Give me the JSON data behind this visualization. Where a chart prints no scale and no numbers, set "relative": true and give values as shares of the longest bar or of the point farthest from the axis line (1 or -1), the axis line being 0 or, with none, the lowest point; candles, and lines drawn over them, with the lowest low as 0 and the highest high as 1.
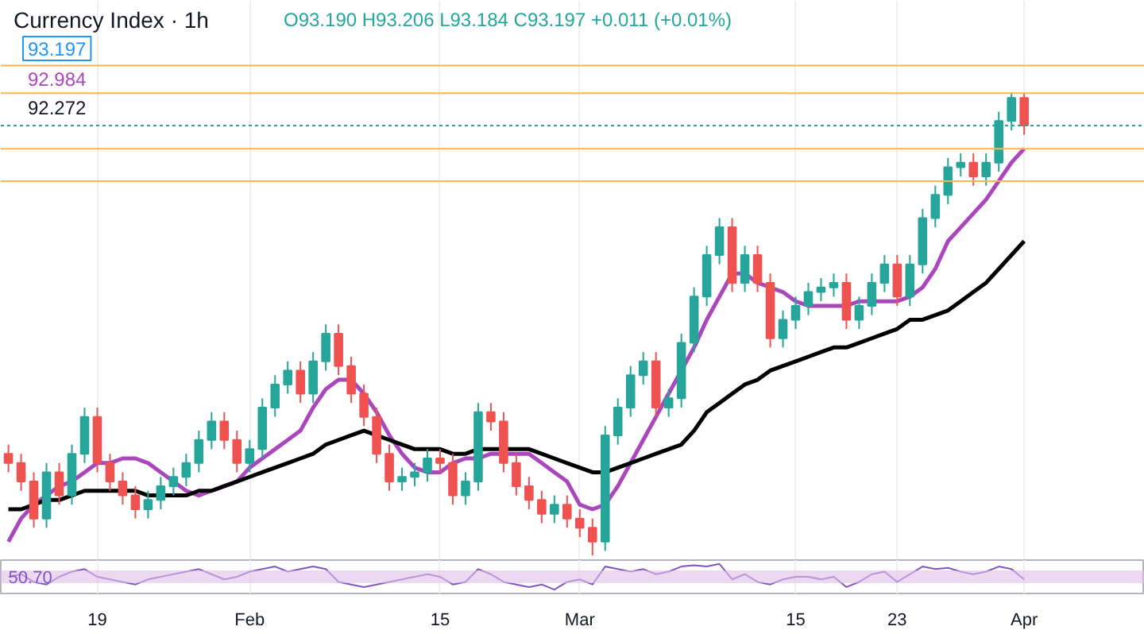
{
  "chart_data": [
    {
      "type": "candlestick",
      "title": "Currency Index · 1h",
      "relative": true,
      "tick_labels": false,
      "grid": "x",
      "annotations": [
        "O93.190 H93.206 L93.184 C93.197 +0.011 (+0.01%)",
        "93.197",
        "92.984",
        "92.272"
      ],
      "categories": [
        null,
        null,
        null,
        null,
        null,
        null,
        null,
        "19",
        null,
        null,
        null,
        null,
        null,
        null,
        null,
        null,
        null,
        null,
        null,
        "Feb",
        null,
        null,
        null,
        null,
        null,
        null,
        null,
        null,
        null,
        null,
        null,
        null,
        null,
        null,
        "15",
        null,
        null,
        null,
        null,
        null,
        null,
        null,
        null,
        null,
        null,
        "Mar",
        null,
        null,
        null,
        null,
        null,
        null,
        null,
        null,
        null,
        null,
        null,
        null,
        null,
        null,
        null,
        null,
        "15",
        null,
        null,
        null,
        null,
        null,
        null,
        null,
        "23",
        null,
        null,
        null,
        null,
        null,
        null,
        null,
        null,
        null,
        "Apr"
      ],
      "ohlc": [
        [
          0.22,
          0.24,
          0.18,
          0.2
        ],
        [
          0.2,
          0.22,
          0.14,
          0.16
        ],
        [
          0.16,
          0.18,
          0.06,
          0.08
        ],
        [
          0.08,
          0.2,
          0.06,
          0.18
        ],
        [
          0.18,
          0.2,
          0.11,
          0.13
        ],
        [
          0.13,
          0.24,
          0.11,
          0.22
        ],
        [
          0.22,
          0.32,
          0.2,
          0.3
        ],
        [
          0.3,
          0.32,
          0.18,
          0.2
        ],
        [
          0.2,
          0.22,
          0.14,
          0.16
        ],
        [
          0.16,
          0.18,
          0.11,
          0.13
        ],
        [
          0.13,
          0.15,
          0.08,
          0.1
        ],
        [
          0.1,
          0.14,
          0.08,
          0.12
        ],
        [
          0.12,
          0.17,
          0.1,
          0.15
        ],
        [
          0.15,
          0.19,
          0.13,
          0.17
        ],
        [
          0.17,
          0.22,
          0.15,
          0.2
        ],
        [
          0.2,
          0.27,
          0.18,
          0.25
        ],
        [
          0.25,
          0.31,
          0.23,
          0.29
        ],
        [
          0.29,
          0.31,
          0.23,
          0.25
        ],
        [
          0.25,
          0.27,
          0.18,
          0.2
        ],
        [
          0.2,
          0.25,
          0.18,
          0.23
        ],
        [
          0.23,
          0.34,
          0.21,
          0.32
        ],
        [
          0.32,
          0.39,
          0.3,
          0.37
        ],
        [
          0.37,
          0.42,
          0.35,
          0.4
        ],
        [
          0.4,
          0.42,
          0.33,
          0.35
        ],
        [
          0.35,
          0.44,
          0.33,
          0.42
        ],
        [
          0.42,
          0.5,
          0.4,
          0.48
        ],
        [
          0.48,
          0.5,
          0.39,
          0.41
        ],
        [
          0.41,
          0.43,
          0.33,
          0.35
        ],
        [
          0.35,
          0.37,
          0.28,
          0.3
        ],
        [
          0.3,
          0.32,
          0.2,
          0.22
        ],
        [
          0.22,
          0.24,
          0.14,
          0.16
        ],
        [
          0.16,
          0.19,
          0.14,
          0.17
        ],
        [
          0.17,
          0.2,
          0.15,
          0.18
        ],
        [
          0.18,
          0.23,
          0.16,
          0.21
        ],
        [
          0.21,
          0.23,
          0.18,
          0.2
        ],
        [
          0.2,
          0.22,
          0.11,
          0.13
        ],
        [
          0.13,
          0.18,
          0.11,
          0.16
        ],
        [
          0.16,
          0.33,
          0.14,
          0.31
        ],
        [
          0.31,
          0.33,
          0.27,
          0.29
        ],
        [
          0.29,
          0.31,
          0.18,
          0.2
        ],
        [
          0.2,
          0.22,
          0.13,
          0.15
        ],
        [
          0.15,
          0.17,
          0.1,
          0.12
        ],
        [
          0.12,
          0.14,
          0.07,
          0.09
        ],
        [
          0.09,
          0.13,
          0.07,
          0.11
        ],
        [
          0.11,
          0.13,
          0.06,
          0.08
        ],
        [
          0.08,
          0.1,
          0.04,
          0.06
        ],
        [
          0.06,
          0.08,
          0.0,
          0.03
        ],
        [
          0.03,
          0.28,
          0.01,
          0.26
        ],
        [
          0.26,
          0.34,
          0.24,
          0.32
        ],
        [
          0.32,
          0.41,
          0.3,
          0.39
        ],
        [
          0.39,
          0.44,
          0.37,
          0.42
        ],
        [
          0.42,
          0.44,
          0.3,
          0.32
        ],
        [
          0.32,
          0.36,
          0.3,
          0.34
        ],
        [
          0.34,
          0.48,
          0.32,
          0.46
        ],
        [
          0.46,
          0.58,
          0.44,
          0.56
        ],
        [
          0.56,
          0.67,
          0.54,
          0.65
        ],
        [
          0.65,
          0.73,
          0.63,
          0.71
        ],
        [
          0.71,
          0.73,
          0.57,
          0.59
        ],
        [
          0.59,
          0.67,
          0.57,
          0.65
        ],
        [
          0.65,
          0.67,
          0.57,
          0.59
        ],
        [
          0.59,
          0.61,
          0.45,
          0.47
        ],
        [
          0.47,
          0.53,
          0.45,
          0.51
        ],
        [
          0.51,
          0.56,
          0.49,
          0.54
        ],
        [
          0.54,
          0.59,
          0.52,
          0.57
        ],
        [
          0.57,
          0.6,
          0.55,
          0.58
        ],
        [
          0.58,
          0.61,
          0.56,
          0.59
        ],
        [
          0.59,
          0.61,
          0.49,
          0.51
        ],
        [
          0.51,
          0.56,
          0.49,
          0.54
        ],
        [
          0.54,
          0.61,
          0.52,
          0.59
        ],
        [
          0.59,
          0.65,
          0.57,
          0.63
        ],
        [
          0.63,
          0.65,
          0.54,
          0.56
        ],
        [
          0.56,
          0.65,
          0.54,
          0.63
        ],
        [
          0.63,
          0.75,
          0.61,
          0.73
        ],
        [
          0.73,
          0.8,
          0.71,
          0.78
        ],
        [
          0.78,
          0.86,
          0.76,
          0.84
        ],
        [
          0.84,
          0.87,
          0.82,
          0.85
        ],
        [
          0.85,
          0.87,
          0.8,
          0.82
        ],
        [
          0.82,
          0.87,
          0.8,
          0.85
        ],
        [
          0.85,
          0.96,
          0.83,
          0.94
        ],
        [
          0.94,
          1.0,
          0.92,
          0.99
        ],
        [
          0.99,
          1.0,
          0.91,
          0.93
        ]
      ],
      "series": [
        {
          "type": "line",
          "color": "#ab47bc",
          "values": [
            0.03,
            0.08,
            0.11,
            0.13,
            0.15,
            0.16,
            0.18,
            0.2,
            0.2,
            0.21,
            0.21,
            0.2,
            0.18,
            0.16,
            0.14,
            0.13,
            0.14,
            0.15,
            0.16,
            0.19,
            0.21,
            0.23,
            0.25,
            0.27,
            0.32,
            0.36,
            0.38,
            0.38,
            0.35,
            0.31,
            0.26,
            0.22,
            0.19,
            0.18,
            0.18,
            0.2,
            0.21,
            0.21,
            0.22,
            0.22,
            0.22,
            0.22,
            0.2,
            0.18,
            0.16,
            0.11,
            0.1,
            0.11,
            0.15,
            0.2,
            0.25,
            0.3,
            0.35,
            0.4,
            0.45,
            0.51,
            0.56,
            0.61,
            0.61,
            0.59,
            0.58,
            0.57,
            0.55,
            0.54,
            0.54,
            0.54,
            0.54,
            0.55,
            0.55,
            0.55,
            0.55,
            0.56,
            0.58,
            0.62,
            0.68,
            0.71,
            0.74,
            0.77,
            0.81,
            0.85,
            0.88
          ]
        },
        {
          "type": "line",
          "color": "#000000",
          "values": [
            0.1,
            0.1,
            0.11,
            0.12,
            0.12,
            0.13,
            0.14,
            0.14,
            0.14,
            0.14,
            0.14,
            0.13,
            0.13,
            0.13,
            0.13,
            0.14,
            0.14,
            0.15,
            0.16,
            0.17,
            0.18,
            0.19,
            0.2,
            0.21,
            0.22,
            0.24,
            0.25,
            0.26,
            0.27,
            0.26,
            0.25,
            0.24,
            0.23,
            0.23,
            0.23,
            0.22,
            0.22,
            0.23,
            0.23,
            0.23,
            0.23,
            0.23,
            0.22,
            0.21,
            0.2,
            0.19,
            0.18,
            0.18,
            0.19,
            0.2,
            0.21,
            0.22,
            0.23,
            0.24,
            0.27,
            0.31,
            0.33,
            0.35,
            0.37,
            0.38,
            0.4,
            0.41,
            0.42,
            0.43,
            0.44,
            0.45,
            0.45,
            0.46,
            0.47,
            0.48,
            0.49,
            0.51,
            0.51,
            0.52,
            0.53,
            0.55,
            0.57,
            0.59,
            0.62,
            0.65,
            0.68
          ]
        }
      ],
      "ref_lines": [
        {
          "axis": "y",
          "value": 1.06,
          "color": "#ffb74d"
        },
        {
          "axis": "y",
          "value": 1.0,
          "color": "#ffb74d"
        },
        {
          "axis": "y",
          "value": 0.88,
          "color": "#ffb74d"
        },
        {
          "axis": "y",
          "value": 0.81,
          "color": "#ffb74d"
        },
        {
          "axis": "y",
          "value": 0.93,
          "color": "#26a69a",
          "line_style": "dotted"
        }
      ]
    },
    {
      "type": "line",
      "relative": true,
      "tick_labels": "x",
      "grid": "x",
      "annotations": [
        "50.70"
      ],
      "series": [
        {
          "color": "#7e57c2",
          "values": [
            0.5,
            0.6,
            0.3,
            0.2,
            0.5,
            0.7,
            0.8,
            0.5,
            0.4,
            0.3,
            0.2,
            0.4,
            0.5,
            0.6,
            0.7,
            0.8,
            0.6,
            0.4,
            0.5,
            0.7,
            0.8,
            0.9,
            0.7,
            0.8,
            0.9,
            0.8,
            0.3,
            0.2,
            0.1,
            0.2,
            0.3,
            0.4,
            0.5,
            0.6,
            0.5,
            0.2,
            0.3,
            0.8,
            0.6,
            0.3,
            0.2,
            0.1,
            0.2,
            0.0,
            0.3,
            0.4,
            0.2,
            0.9,
            0.8,
            0.7,
            0.8,
            0.6,
            0.7,
            0.9,
            0.95,
            0.9,
            1.0,
            0.4,
            0.6,
            0.3,
            0.2,
            0.4,
            0.5,
            0.5,
            0.4,
            0.5,
            0.1,
            0.3,
            0.6,
            0.7,
            0.3,
            0.6,
            0.9,
            0.8,
            0.85,
            0.7,
            0.6,
            0.7,
            0.9,
            0.8,
            0.4
          ]
        }
      ],
      "bands": [
        {
          "axis": "y",
          "from": 0.25,
          "to": 0.75,
          "color": "#e1bee7"
        }
      ]
    }
  ]
}
